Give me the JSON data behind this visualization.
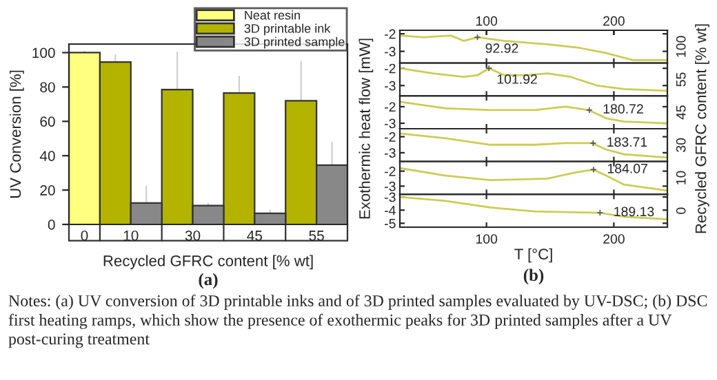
{
  "chart_data": [
    {
      "type": "bar",
      "categories": [
        "0",
        "10",
        "30",
        "45",
        "55"
      ],
      "xlabel": "Recycled GFRC content [% wt]",
      "ylabel": "UV Conversion [%]",
      "ylim": [
        0,
        105
      ],
      "yticks": [
        0,
        20,
        40,
        60,
        80,
        100
      ],
      "legend": "top right",
      "grid": false,
      "series": [
        {
          "name": "Neat resin",
          "color": "#ffff80",
          "values": [
            100,
            null,
            null,
            null,
            null
          ],
          "errors": [
            1,
            null,
            null,
            null,
            null
          ]
        },
        {
          "name": "3D printable ink",
          "color": "#b3b300",
          "values": [
            null,
            94.5,
            78.5,
            76.5,
            72
          ],
          "errors": [
            null,
            4.5,
            22,
            10,
            23
          ]
        },
        {
          "name": "3D printed sample",
          "color": "#888888",
          "values": [
            null,
            12.5,
            11,
            6.5,
            34.5
          ],
          "errors": [
            null,
            10,
            1.5,
            2,
            13.5
          ]
        }
      ],
      "annotations": [
        "(a)",
        "Notes: (a) UV conversion of 3D printable inks and of 3D printed samples evaluated by UV-DSC; (b) DSC first heating ramps, which show the presence of exothermic peaks for 3D printed samples after a UV post-curing treatment"
      ]
    },
    {
      "type": "line",
      "xlim": [
        32,
        242
      ],
      "x2lim": [
        32,
        242
      ],
      "x2ticks": [
        100,
        200
      ],
      "xticks": [
        100,
        200
      ],
      "ylim": [
        -3.67,
        -1.8
      ],
      "yticks": [
        -2,
        -3
      ],
      "tick_labels": "y",
      "series": [
        {
          "color": "#cccc55",
          "x": [
            32,
            51,
            72,
            82,
            93,
            114,
            148,
            173,
            194,
            215,
            242
          ],
          "values": [
            -2.1,
            -2.2,
            -2.1,
            -2.4,
            -2.2,
            -2.4,
            -2.6,
            -2.8,
            -3.1,
            -3.5,
            -3.5
          ]
        }
      ],
      "annotations": [
        "100",
        {
          "text": "92.92",
          "x": 92.92,
          "y": -2.2
        }
      ]
    },
    {
      "type": "line",
      "xlim": [
        32,
        242
      ],
      "xticks": [
        100,
        200
      ],
      "ylim": [
        -3.6,
        -1.7
      ],
      "yticks": [
        -2,
        -3
      ],
      "tick_labels": "y",
      "series": [
        {
          "color": "#cccc55",
          "x": [
            32,
            58,
            82,
            93,
            102,
            114,
            131,
            148,
            166,
            187,
            208,
            242
          ],
          "values": [
            -2.0,
            -2.3,
            -2.5,
            -2.4,
            -2.0,
            -2.4,
            -2.4,
            -2.3,
            -2.5,
            -3.0,
            -3.2,
            -3.3
          ]
        }
      ],
      "annotations": [
        "55",
        {
          "text": "101.92",
          "x": 101.92,
          "y": -2.0
        }
      ]
    },
    {
      "type": "line",
      "xlim": [
        32,
        242
      ],
      "xticks": [
        100,
        200
      ],
      "ylim": [
        -3.33,
        -1.35
      ],
      "yticks": [
        -2,
        -3
      ],
      "tick_labels": "y",
      "ylabel": "Exothermic heat flow [mW]",
      "y2label": "Recycled GFRC content [% wt]",
      "series": [
        {
          "color": "#cccc55",
          "x": [
            32,
            68,
            103,
            138,
            162,
            180,
            194,
            208,
            242
          ],
          "values": [
            -1.7,
            -2.1,
            -2.2,
            -2.2,
            -2.0,
            -2.2,
            -2.7,
            -2.9,
            -3.0
          ]
        }
      ],
      "annotations": [
        "45",
        {
          "text": "180.72",
          "x": 180.72,
          "y": -2.2
        }
      ]
    },
    {
      "type": "line",
      "xlim": [
        32,
        242
      ],
      "xticks": [
        100,
        200
      ],
      "ylim": [
        -3.55,
        -1.5
      ],
      "yticks": [
        -2,
        -3
      ],
      "tick_labels": "y",
      "series": [
        {
          "color": "#cccc55",
          "x": [
            32,
            68,
            103,
            138,
            162,
            183,
            194,
            208,
            242
          ],
          "values": [
            -1.8,
            -2.1,
            -2.5,
            -2.5,
            -2.4,
            -2.4,
            -2.8,
            -3.1,
            -3.3
          ]
        }
      ],
      "annotations": [
        "30",
        {
          "text": "183.71",
          "x": 183.71,
          "y": -2.4
        }
      ]
    },
    {
      "type": "line",
      "xlim": [
        32,
        242
      ],
      "xticks": [
        100,
        200
      ],
      "ylim": [
        -3.55,
        -1.36
      ],
      "yticks": [
        -2,
        -3
      ],
      "tick_labels": "y",
      "series": [
        {
          "color": "#cccc55",
          "x": [
            32,
            68,
            103,
            148,
            169,
            184,
            194,
            208,
            242
          ],
          "values": [
            -1.8,
            -2.3,
            -2.6,
            -2.5,
            -2.1,
            -1.9,
            -2.3,
            -2.9,
            -3.3
          ]
        }
      ],
      "annotations": [
        "10",
        {
          "text": "184.07",
          "x": 184.07,
          "y": -1.9
        }
      ]
    },
    {
      "type": "line",
      "xlim": [
        32,
        242
      ],
      "xticks": [
        100,
        200
      ],
      "ylim": [
        -5.3,
        -2.8
      ],
      "yticks": [
        -3,
        -4,
        -5
      ],
      "xlabel": "T [°C]",
      "series": [
        {
          "color": "#cccc55",
          "x": [
            32,
            68,
            103,
            138,
            189,
            208,
            242
          ],
          "values": [
            -3.0,
            -3.3,
            -3.8,
            -4.1,
            -4.2,
            -4.5,
            -4.7
          ]
        }
      ],
      "annotations": [
        "0",
        {
          "text": "189.13",
          "x": 189.13,
          "y": -4.2
        },
        "(b)"
      ]
    }
  ]
}
